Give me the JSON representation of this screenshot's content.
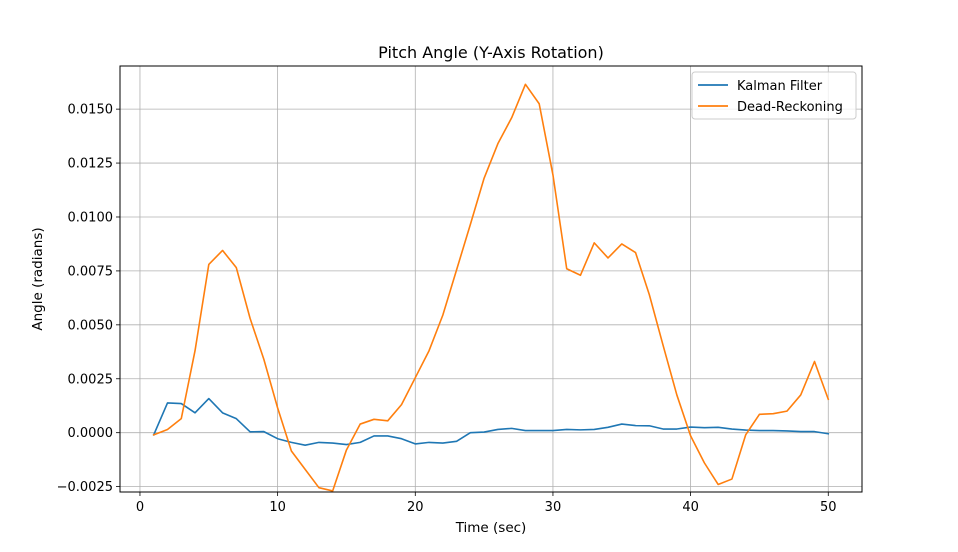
{
  "chart_data": {
    "type": "line",
    "title": "Pitch Angle (Y-Axis Rotation)",
    "xlabel": "Time (sec)",
    "ylabel": "Angle (radians)",
    "xlim": [
      -1.45,
      52.45
    ],
    "ylim": [
      -0.00275,
      0.017
    ],
    "x_ticks": [
      0,
      10,
      20,
      30,
      40,
      50
    ],
    "x_tick_labels": [
      "0",
      "10",
      "20",
      "30",
      "40",
      "50"
    ],
    "y_ticks": [
      -0.0025,
      0.0,
      0.0025,
      0.005,
      0.0075,
      0.01,
      0.0125,
      0.015
    ],
    "y_tick_labels": [
      "−0.0025",
      "0.0000",
      "0.0025",
      "0.0050",
      "0.0075",
      "0.0100",
      "0.0125",
      "0.0150"
    ],
    "grid": true,
    "legend_position": "top-right",
    "x": [
      1,
      2,
      3,
      4,
      5,
      6,
      7,
      8,
      9,
      10,
      11,
      12,
      13,
      14,
      15,
      16,
      17,
      18,
      19,
      20,
      21,
      22,
      23,
      24,
      25,
      26,
      27,
      28,
      29,
      30,
      31,
      32,
      33,
      34,
      35,
      36,
      37,
      38,
      39,
      40,
      41,
      42,
      43,
      44,
      45,
      46,
      47,
      48,
      49,
      50
    ],
    "series": [
      {
        "name": "Kalman Filter",
        "color": "#1f77b4",
        "values": [
          -0.0001,
          0.00138,
          0.00135,
          0.00092,
          0.00158,
          0.00092,
          0.00065,
          4e-05,
          5e-05,
          -0.00028,
          -0.00045,
          -0.00058,
          -0.00045,
          -0.00048,
          -0.00055,
          -0.00045,
          -0.00015,
          -0.00015,
          -0.00028,
          -0.00052,
          -0.00045,
          -0.00048,
          -0.0004,
          0.0,
          3e-05,
          0.00015,
          0.0002,
          0.0001,
          0.0001,
          0.0001,
          0.00015,
          0.00013,
          0.00015,
          0.00025,
          0.0004,
          0.00033,
          0.00032,
          0.00017,
          0.00017,
          0.00026,
          0.00023,
          0.00025,
          0.00017,
          0.00012,
          0.0001,
          0.0001,
          8e-05,
          5e-05,
          5e-05,
          -5e-05
        ]
      },
      {
        "name": "Dead-Reckoning",
        "color": "#ff7f0e",
        "values": [
          -0.0001,
          0.00015,
          0.00065,
          0.0038,
          0.0078,
          0.00845,
          0.00765,
          0.0053,
          0.0034,
          0.00115,
          -0.00085,
          -0.0017,
          -0.00255,
          -0.0027,
          -0.0008,
          0.0004,
          0.00062,
          0.00055,
          0.0013,
          0.00255,
          0.0038,
          0.00545,
          0.00755,
          0.00965,
          0.0118,
          0.0134,
          0.0146,
          0.01615,
          0.01525,
          0.01195,
          0.0076,
          0.0073,
          0.0088,
          0.0081,
          0.00875,
          0.00835,
          0.0064,
          0.00405,
          0.00175,
          -0.00015,
          -0.0014,
          -0.0024,
          -0.00215,
          -0.0001,
          0.00085,
          0.00088,
          0.001,
          0.00175,
          0.0033,
          0.00155
        ]
      }
    ]
  }
}
